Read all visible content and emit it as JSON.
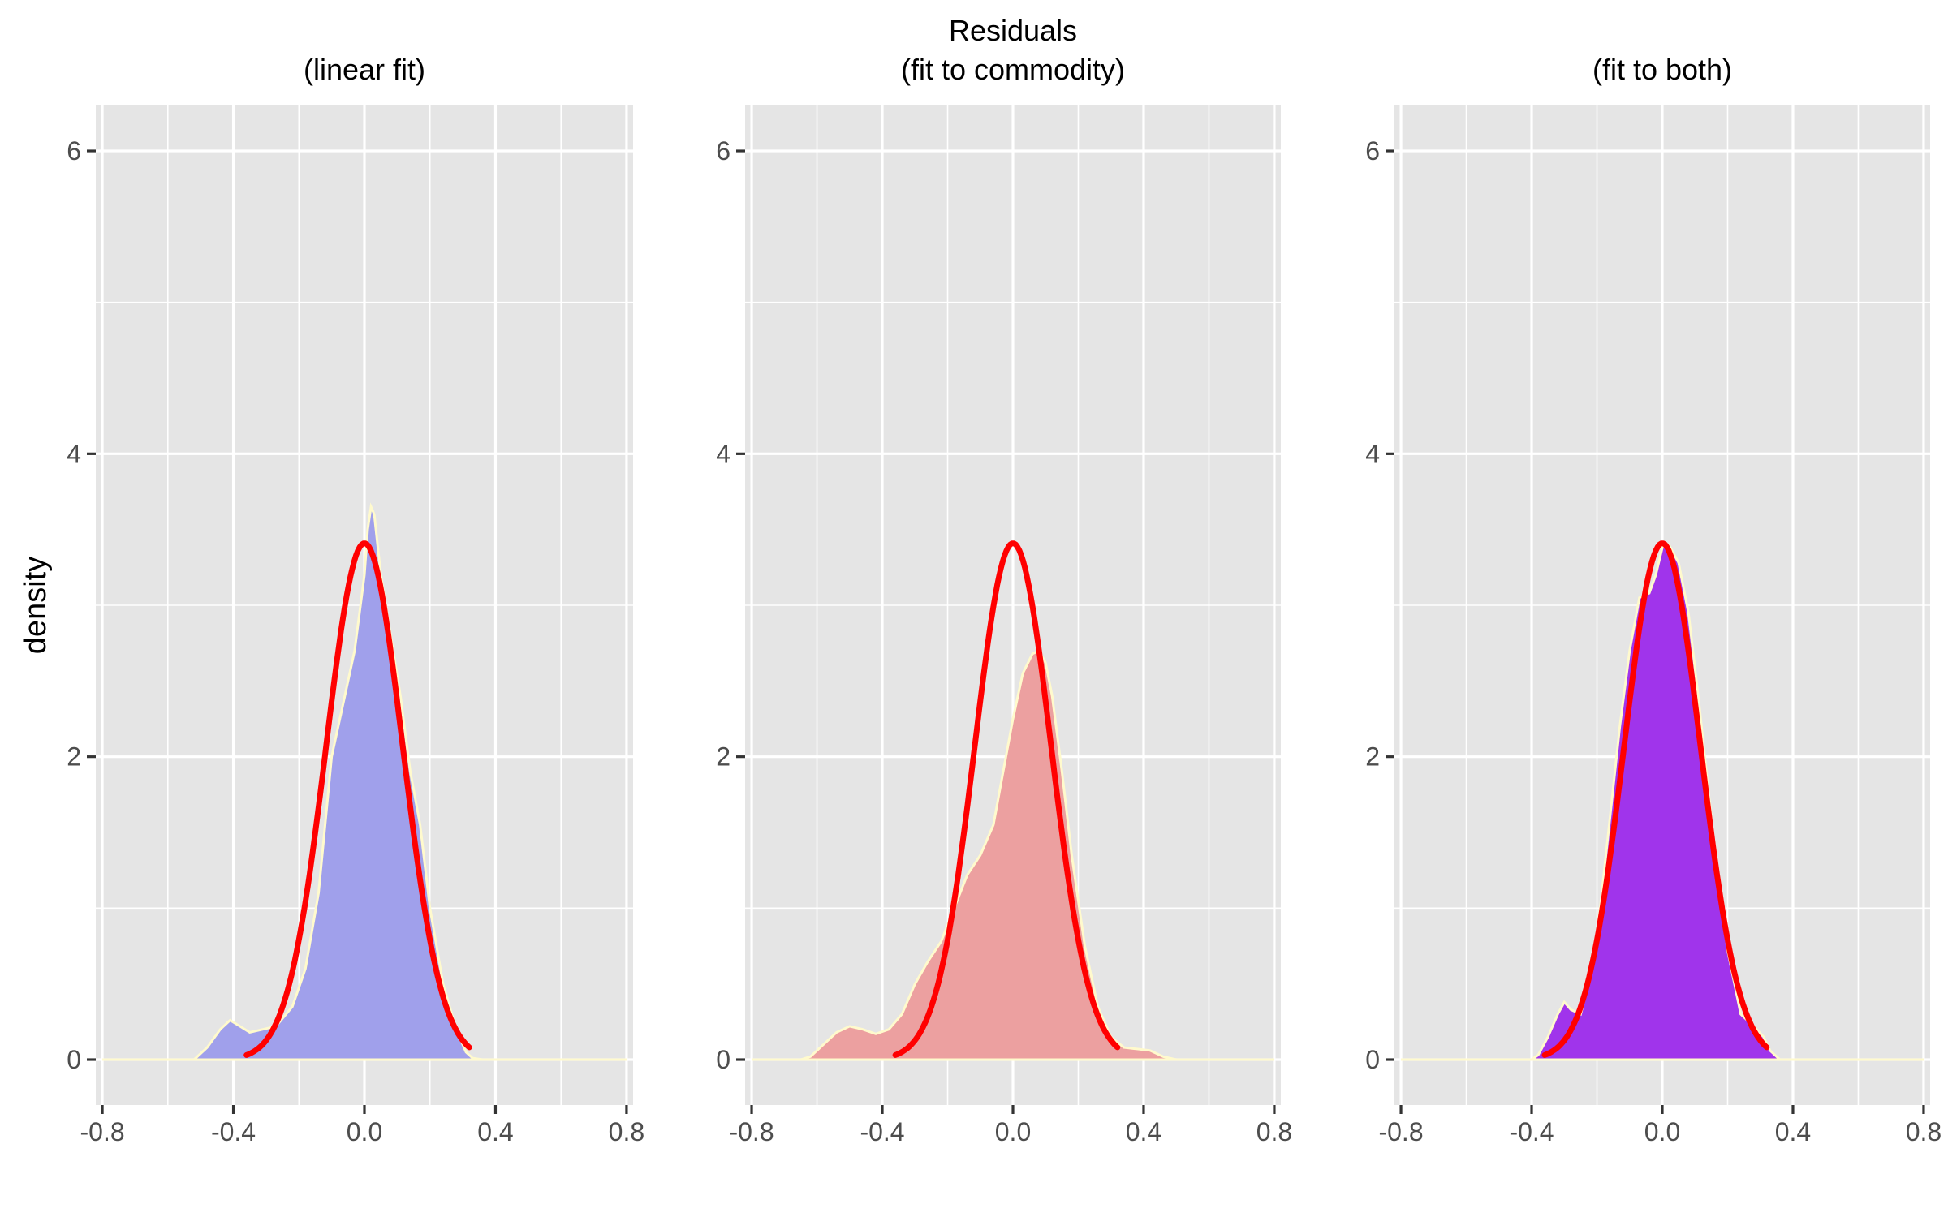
{
  "chart_data": [
    {
      "type": "area",
      "title": "",
      "subtitle": "(linear fit)",
      "xlabel": "",
      "ylabel": "density",
      "xlim": [
        -0.82,
        0.82
      ],
      "ylim": [
        -0.3,
        6.3
      ],
      "x_ticks": [
        -0.8,
        -0.4,
        0.0,
        0.4,
        0.8
      ],
      "x_tick_labels": [
        "-0.8",
        "-0.4",
        "0.0",
        "0.4",
        "0.8"
      ],
      "y_ticks": [
        0,
        2,
        4,
        6
      ],
      "y_tick_labels": [
        "0",
        "2",
        "4",
        "6"
      ],
      "fill_color": "#a0a0eb",
      "outline_color": "#fffacd",
      "curve_color": "#ff0000",
      "series": [
        {
          "type": "area",
          "x": [
            -0.8,
            -0.6,
            -0.52,
            -0.48,
            -0.44,
            -0.41,
            -0.38,
            -0.35,
            -0.31,
            -0.27,
            -0.22,
            -0.18,
            -0.14,
            -0.1,
            -0.06,
            -0.03,
            0.0,
            0.01,
            0.02,
            0.03,
            0.05,
            0.08,
            0.11,
            0.14,
            0.17,
            0.2,
            0.24,
            0.28,
            0.31,
            0.33,
            0.36,
            0.4,
            0.6,
            0.8
          ],
          "y": [
            0,
            0,
            0.0,
            0.08,
            0.2,
            0.26,
            0.22,
            0.18,
            0.2,
            0.22,
            0.35,
            0.6,
            1.1,
            2.0,
            2.4,
            2.7,
            3.2,
            3.5,
            3.65,
            3.6,
            3.2,
            2.8,
            2.4,
            1.9,
            1.55,
            1.0,
            0.5,
            0.2,
            0.05,
            0.01,
            0.0,
            0,
            0,
            0
          ]
        },
        {
          "type": "line",
          "mean": 0.0,
          "sd": 0.117,
          "x_range": [
            -0.36,
            0.32
          ]
        }
      ]
    },
    {
      "type": "area",
      "title": "Residuals",
      "subtitle": "(fit to commodity)",
      "xlabel": "",
      "ylabel": "",
      "xlim": [
        -0.82,
        0.82
      ],
      "ylim": [
        -0.3,
        6.3
      ],
      "x_ticks": [
        -0.8,
        -0.4,
        0.0,
        0.4,
        0.8
      ],
      "x_tick_labels": [
        "-0.8",
        "-0.4",
        "0.0",
        "0.4",
        "0.8"
      ],
      "y_ticks": [
        0,
        2,
        4,
        6
      ],
      "y_tick_labels": [
        "0",
        "2",
        "4",
        "6"
      ],
      "fill_color": "#eca0a0",
      "outline_color": "#fffacd",
      "curve_color": "#ff0000",
      "series": [
        {
          "type": "area",
          "x": [
            -0.8,
            -0.65,
            -0.62,
            -0.58,
            -0.54,
            -0.5,
            -0.46,
            -0.42,
            -0.38,
            -0.34,
            -0.3,
            -0.26,
            -0.22,
            -0.18,
            -0.14,
            -0.1,
            -0.06,
            -0.03,
            0.0,
            0.03,
            0.06,
            0.08,
            0.1,
            0.12,
            0.15,
            0.18,
            0.22,
            0.26,
            0.3,
            0.34,
            0.38,
            0.42,
            0.46,
            0.5,
            0.6,
            0.8
          ],
          "y": [
            0,
            0,
            0.02,
            0.1,
            0.18,
            0.22,
            0.2,
            0.17,
            0.2,
            0.3,
            0.5,
            0.65,
            0.78,
            1.0,
            1.22,
            1.35,
            1.55,
            1.9,
            2.25,
            2.55,
            2.68,
            2.7,
            2.62,
            2.4,
            1.9,
            1.35,
            0.75,
            0.35,
            0.15,
            0.08,
            0.07,
            0.06,
            0.02,
            0.0,
            0,
            0
          ]
        },
        {
          "type": "line",
          "mean": 0.0,
          "sd": 0.117,
          "x_range": [
            -0.36,
            0.32
          ]
        }
      ]
    },
    {
      "type": "area",
      "title": "",
      "subtitle": "(fit to both)",
      "xlabel": "",
      "ylabel": "",
      "xlim": [
        -0.82,
        0.82
      ],
      "ylim": [
        -0.3,
        6.3
      ],
      "x_ticks": [
        -0.8,
        -0.4,
        0.0,
        0.4,
        0.8
      ],
      "x_tick_labels": [
        "-0.8",
        "-0.4",
        "0.0",
        "0.4",
        "0.8"
      ],
      "y_ticks": [
        0,
        2,
        4,
        6
      ],
      "y_tick_labels": [
        "0",
        "2",
        "4",
        "6"
      ],
      "fill_color": "#a034eb",
      "outline_color": "#fffacd",
      "curve_color": "#ff0000",
      "series": [
        {
          "type": "area",
          "x": [
            -0.8,
            -0.5,
            -0.4,
            -0.38,
            -0.35,
            -0.32,
            -0.3,
            -0.28,
            -0.25,
            -0.22,
            -0.19,
            -0.16,
            -0.13,
            -0.1,
            -0.07,
            -0.04,
            -0.02,
            0.0,
            0.02,
            0.05,
            0.08,
            0.11,
            0.14,
            0.17,
            0.2,
            0.24,
            0.28,
            0.31,
            0.33,
            0.36,
            0.4,
            0.6,
            0.8
          ],
          "y": [
            0,
            0,
            0.0,
            0.03,
            0.15,
            0.3,
            0.38,
            0.33,
            0.3,
            0.55,
            1.0,
            1.6,
            2.2,
            2.7,
            3.05,
            3.08,
            3.2,
            3.38,
            3.4,
            3.28,
            2.95,
            2.4,
            1.8,
            1.2,
            0.72,
            0.3,
            0.22,
            0.15,
            0.06,
            0.0,
            0,
            0,
            0
          ]
        },
        {
          "type": "line",
          "mean": 0.0,
          "sd": 0.117,
          "x_range": [
            -0.36,
            0.32
          ]
        }
      ]
    }
  ]
}
